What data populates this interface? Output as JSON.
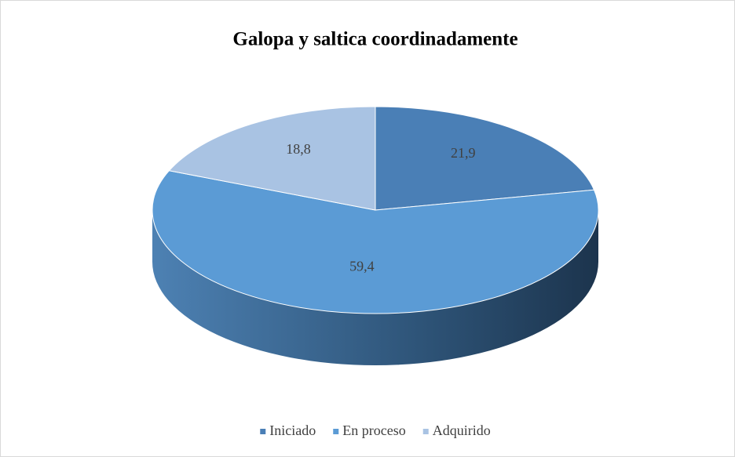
{
  "chart_data": {
    "type": "pie",
    "title": "Galopa y saltica coordinadamente",
    "categories": [
      "Iniciado",
      "En proceso",
      "Adquirido"
    ],
    "values": [
      21.9,
      59.4,
      18.8
    ],
    "value_labels": [
      "21,9",
      "59,4",
      "18,8"
    ],
    "colors": [
      "#4a7fb6",
      "#5b9bd5",
      "#a9c3e3"
    ],
    "legend": "bottom"
  }
}
